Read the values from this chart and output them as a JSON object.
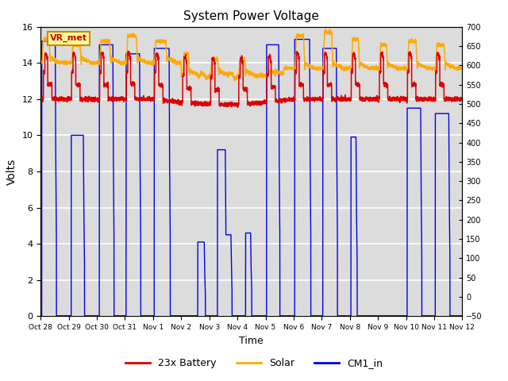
{
  "title": "System Power Voltage",
  "xlabel": "Time",
  "ylabel": "Volts",
  "ylim_left": [
    0,
    16
  ],
  "ylim_right": [
    -50,
    700
  ],
  "yticks_left": [
    0,
    2,
    4,
    6,
    8,
    10,
    12,
    14,
    16
  ],
  "bg_color": "#dcdcdc",
  "grid_color": "#c8c8c8",
  "vr_label": "VR_met",
  "legend_labels": [
    "23x Battery",
    "Solar",
    "CM1_in"
  ],
  "legend_colors": [
    "#dd0000",
    "#ffaa00",
    "#0000ee"
  ],
  "x_tick_labels": [
    "Oct 28",
    "Oct 29",
    "Oct 30",
    "Oct 31",
    "Nov 1",
    "Nov 2",
    "Nov 3",
    "Nov 4",
    "Nov 5",
    "Nov 6",
    "Nov 7",
    "Nov 8",
    "Nov 9",
    "Nov 10",
    "Nov 11",
    "Nov 12"
  ],
  "n_ticks": 16
}
